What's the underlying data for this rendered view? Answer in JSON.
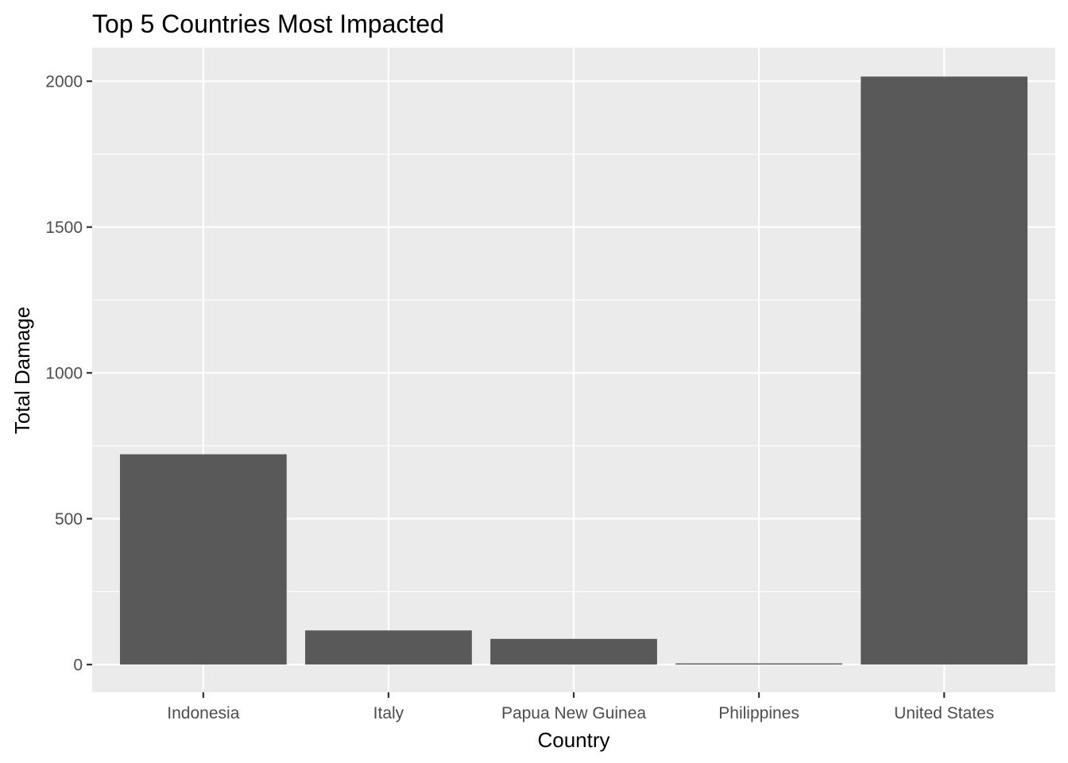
{
  "chart_data": {
    "type": "bar",
    "title": "Top 5 Countries Most Impacted",
    "xlabel": "Country",
    "ylabel": "Total Damage",
    "categories": [
      "Indonesia",
      "Italy",
      "Papua New Guinea",
      "Philippines",
      "United States"
    ],
    "values": [
      721,
      117,
      88,
      4,
      2016
    ],
    "ylim": [
      -95,
      2115
    ],
    "yticks": [
      0,
      500,
      1000,
      1500,
      2000
    ],
    "ytick_labels": [
      "0",
      "500",
      "1000",
      "1500",
      "2000"
    ],
    "grid": true,
    "legend": "none"
  },
  "colors": {
    "panel_background": "#EBEBEB",
    "grid_major": "#FFFFFF",
    "bar_fill": "#595959",
    "tick_text": "#4D4D4D",
    "tick_mark": "#333333"
  }
}
